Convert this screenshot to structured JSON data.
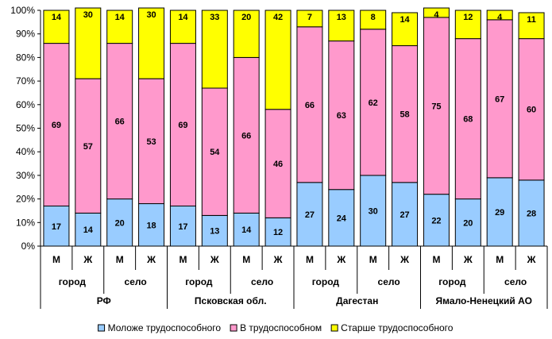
{
  "chart_data": {
    "type": "bar",
    "stacked": true,
    "percent": true,
    "yticks": [
      "0%",
      "10%",
      "20%",
      "30%",
      "40%",
      "50%",
      "60%",
      "70%",
      "80%",
      "90%",
      "100%"
    ],
    "ylim": [
      0,
      100
    ],
    "categories": [
      "М",
      "Ж",
      "М",
      "Ж",
      "М",
      "Ж",
      "М",
      "Ж",
      "М",
      "Ж",
      "М",
      "Ж",
      "М",
      "Ж",
      "М",
      "Ж"
    ],
    "subgroups": [
      "город",
      "село",
      "город",
      "село",
      "город",
      "село",
      "город",
      "село"
    ],
    "regions": [
      "РФ",
      "Псковская обл.",
      "Дагестан",
      "Ямало-Ненецкий АО"
    ],
    "series": [
      {
        "name": "Моложе трудоспособного",
        "color": "#99ccff",
        "values": [
          17,
          14,
          20,
          18,
          17,
          13,
          14,
          12,
          27,
          24,
          30,
          27,
          22,
          20,
          29,
          28
        ]
      },
      {
        "name": "В трудоспособном",
        "color": "#ff99cc",
        "values": [
          69,
          57,
          66,
          53,
          69,
          54,
          66,
          46,
          66,
          63,
          62,
          58,
          75,
          68,
          67,
          60
        ]
      },
      {
        "name": "Старше трудоспособного",
        "color": "#ffff00",
        "values": [
          14,
          30,
          14,
          30,
          14,
          33,
          20,
          42,
          7,
          13,
          8,
          14,
          4,
          12,
          4,
          11
        ]
      }
    ],
    "legend_position": "bottom",
    "grid": false
  }
}
